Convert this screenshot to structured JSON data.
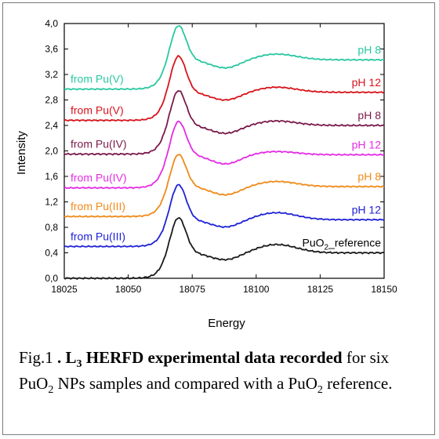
{
  "chart_data": {
    "type": "line",
    "xlabel": "Energy",
    "ylabel": "Intensity",
    "xlim": [
      18025,
      18150
    ],
    "ylim": [
      0.0,
      4.0
    ],
    "x_ticks": [
      "18025",
      "18050",
      "18075",
      "18100",
      "18125",
      "18150"
    ],
    "y_ticks": [
      "0,0",
      "0,4",
      "0,8",
      "1,2",
      "1,6",
      "2,0",
      "2,4",
      "2,8",
      "3,2",
      "3,6",
      "4,0"
    ],
    "grid": false,
    "series": [
      {
        "color": "#1a1a1a",
        "left": "",
        "right": "PuO",
        "right_sub": "2",
        "right_tail": "_reference",
        "baseline": 0.0,
        "end": 0.4,
        "peak": 0.98,
        "bump": 0.53,
        "noise": 0.012
      },
      {
        "color": "#1f22d6",
        "left": "from Pu(III)",
        "right": "pH 12",
        "baseline": 0.5,
        "end": 0.92,
        "peak": 1.5,
        "bump": 1.03,
        "noise": 0.01
      },
      {
        "color": "#f08a1a",
        "left": "from Pu(III)",
        "right": "pH 8",
        "baseline": 0.97,
        "end": 1.44,
        "peak": 1.98,
        "bump": 1.52,
        "noise": 0.01
      },
      {
        "color": "#e42de4",
        "left": "from Pu(IV)",
        "right": "pH 12",
        "baseline": 1.42,
        "end": 1.94,
        "peak": 2.5,
        "bump": 1.99,
        "noise": 0.01
      },
      {
        "color": "#7a1a4a",
        "left": "from Pu(IV)",
        "right": "pH 8",
        "baseline": 1.95,
        "end": 2.4,
        "peak": 2.98,
        "bump": 2.47,
        "noise": 0.013
      },
      {
        "color": "#d8141c",
        "left": "from Pu(V)",
        "right": "pH 12",
        "baseline": 2.48,
        "end": 2.92,
        "peak": 3.52,
        "bump": 3.0,
        "noise": 0.01
      },
      {
        "color": "#28c8a0",
        "left": "from Pu(V)",
        "right": "pH 8",
        "baseline": 2.97,
        "end": 3.43,
        "peak": 4.0,
        "bump": 3.52,
        "noise": 0.01
      }
    ]
  },
  "caption": {
    "prefix": "Fig.1 ",
    "bold_part": ". L",
    "bold_sub": "3",
    "bold_rest": " HERFD experimental data recorded",
    "text1": " for six PuO",
    "text1_sub": "2",
    "text2": " NPs samples and compared with a PuO",
    "text2_sub": "2",
    "text3": " reference."
  }
}
